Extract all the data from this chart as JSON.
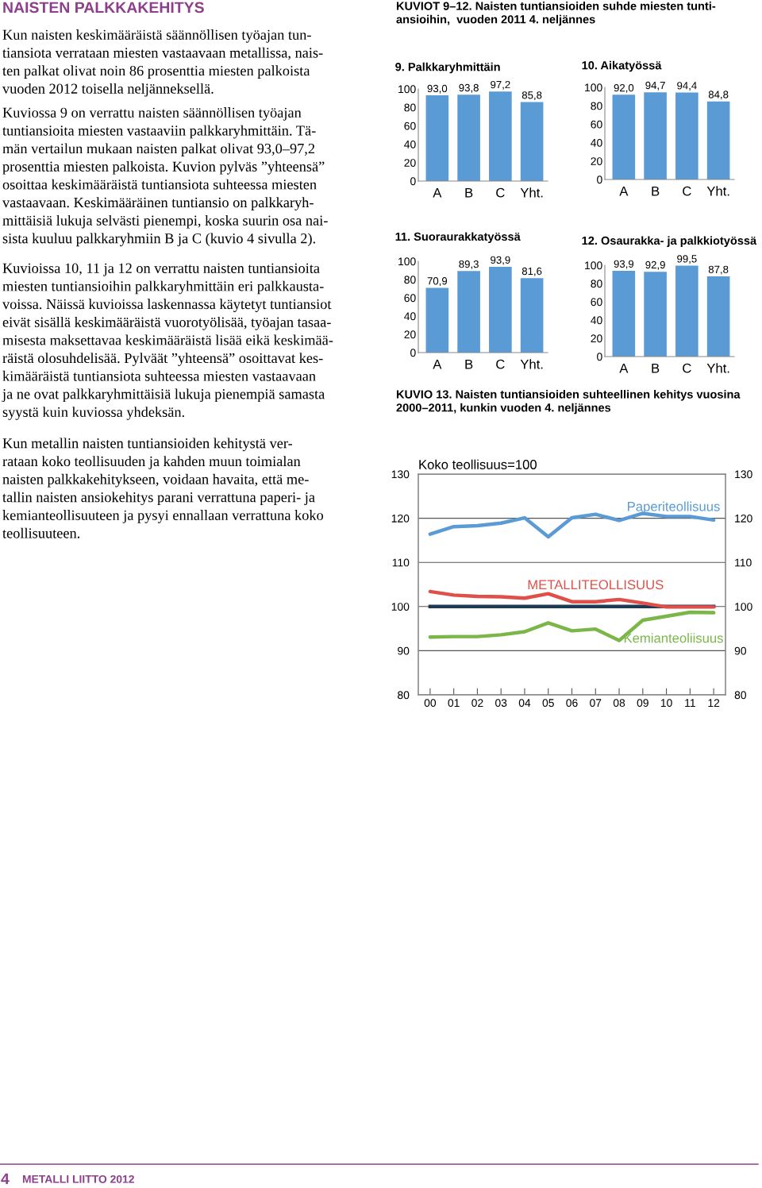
{
  "chart_data": [
    {
      "type": "other",
      "title": "NAISTEN PALKKAKEHITYS",
      "annotations": [
        "Kun naisten keskimääräistä säännöllisen työajan tun-\ntiansiota verrataan miesten vastaavaan metallissa, nais-\nten palkat olivat noin 86 prosenttia miesten palkoista\nvuoden 2012 toisella neljänneksellä.",
        "Kuviossa 9 on verrattu naisten säännöllisen työajan\ntuntiansioita miesten vastaaviin palkkaryhmittäin. Tä-\nmän vertailun mukaan naisten palkat olivat 93,0–97,2\nprosenttia miesten palkoista. Kuvion pylväs ”yhteensä”\nosoittaa keskimääräistä tuntiansiota suhteessa miesten\nvastaavaan. Keskimääräinen tuntiansio on palkkaryh-\nmittäisiä lukuja selvästi pienempi, koska suurin osa nai-\nsista kuuluu palkkaryhmiin B ja C (kuvio 4 sivulla 2).",
        "Kuvioissa 10, 11 ja 12 on verrattu naisten tuntiansioita\nmiesten tuntiansioihin palkkaryhmittäin eri palkkausta-\nvoissa. Näissä kuvioissa laskennassa käytetyt tuntiansiot\neivät sisällä keskimääräistä vuorotyölisää, työajan tasaa-\nmisesta maksettavaa keskimääräistä lisää eikä keskimää-\nräistä olosuhdelisää. Pylväät ”yhteensä” osoittavat kes-\nkimääräistä tuntiansiota suhteessa miesten vastaavaan\nja ne ovat palkkaryhmittäisiä lukuja pienempiä samasta\nsyystä kuin kuviossa yhdeksän.",
        "Kun metallin naisten tuntiansioiden kehitystä ver-\nrataan koko teollisuuden ja kahden muun toimialan\nnaisten palkkakehitykseen, voidaan havaita, että me-\ntallin naisten ansiokehitys parani verrattuna paperi- ja\nkemianteollisuuteen ja pysyi ennallaan verrattuna koko\nteollisuuteen.",
        "4",
        "METALLI LIITTO 2012"
      ]
    },
    {
      "type": "bar",
      "title": "9. Palkkaryhmittäin",
      "annotations": [
        "KUVIOT 9–12. Naisten tuntiansioiden suhde miesten tunti-\nansioihin,  vuoden 2011 4. neljännes"
      ],
      "categories": [
        "A",
        "B",
        "C",
        "Yht."
      ],
      "values": [
        93.0,
        93.8,
        97.2,
        85.8
      ],
      "value_labels": [
        "93,0",
        "93,8",
        "97,2",
        "85,8"
      ],
      "color": "#5b9bd5",
      "ylim": [
        0,
        100
      ],
      "yticks": [
        0,
        20,
        40,
        60,
        80,
        100
      ]
    },
    {
      "type": "bar",
      "title": "10. Aikatyössä",
      "categories": [
        "A",
        "B",
        "C",
        "Yht."
      ],
      "values": [
        92.0,
        94.7,
        94.4,
        84.8
      ],
      "value_labels": [
        "92,0",
        "94,7",
        "94,4",
        "84,8"
      ],
      "color": "#5b9bd5",
      "ylim": [
        0,
        100
      ],
      "yticks": [
        0,
        20,
        40,
        60,
        80,
        100
      ]
    },
    {
      "type": "bar",
      "title": "11. Suoraurakkatyössä",
      "categories": [
        "A",
        "B",
        "C",
        "Yht."
      ],
      "values": [
        70.9,
        89.3,
        93.9,
        81.6
      ],
      "value_labels": [
        "70,9",
        "89,3",
        "93,9",
        "81,6"
      ],
      "color": "#5b9bd5",
      "ylim": [
        0,
        100
      ],
      "yticks": [
        0,
        20,
        40,
        60,
        80,
        100
      ]
    },
    {
      "type": "bar",
      "title": "12. Osaurakka- ja palkkiotyössä",
      "categories": [
        "A",
        "B",
        "C",
        "Yht."
      ],
      "values": [
        93.9,
        92.9,
        99.5,
        87.8
      ],
      "value_labels": [
        "93,9",
        "92,9",
        "99,5",
        "87,8"
      ],
      "color": "#5b9bd5",
      "ylim": [
        0,
        100
      ],
      "yticks": [
        0,
        20,
        40,
        60,
        80,
        100
      ]
    },
    {
      "type": "line",
      "title": "KUVIO 13. Naisten tuntiansioiden suhteellinen kehitys vuosina\n2000–2011, kunkin vuoden 4. neljännes",
      "ylabel": "Koko teollisuus=100",
      "categories": [
        "00",
        "01",
        "02",
        "03",
        "04",
        "05",
        "06",
        "07",
        "08",
        "09",
        "10",
        "11",
        "12"
      ],
      "series": [
        {
          "name": "Paperiteollisuus",
          "color": "#5b9bd5",
          "values": [
            116.4,
            118.1,
            118.3,
            118.9,
            120.1,
            115.8,
            120.1,
            120.9,
            119.5,
            121.1,
            120.4,
            120.4,
            119.6
          ]
        },
        {
          "name": "METALLITEOLLISUUS",
          "color": "#e0504a",
          "values": [
            103.4,
            102.6,
            102.3,
            102.2,
            101.9,
            102.9,
            101.1,
            101.1,
            101.6,
            100.8,
            99.9,
            99.9,
            99.9
          ]
        },
        {
          "name": "Kemianteoliisuus",
          "color": "#7ab648",
          "values": [
            93.1,
            93.2,
            93.2,
            93.6,
            94.3,
            96.3,
            94.5,
            94.9,
            92.3,
            96.9,
            97.8,
            98.7,
            98.6
          ]
        }
      ],
      "ref_lines": [
        {
          "axis": "y",
          "value": 100,
          "color": "#1d3a52"
        }
      ],
      "ylim": [
        80,
        130
      ],
      "yticks": [
        80,
        90,
        100,
        110,
        120,
        130
      ],
      "y2lim": [
        80,
        130
      ],
      "y2ticks": [
        80,
        90,
        100,
        110,
        120,
        130
      ],
      "grid": "y"
    }
  ]
}
